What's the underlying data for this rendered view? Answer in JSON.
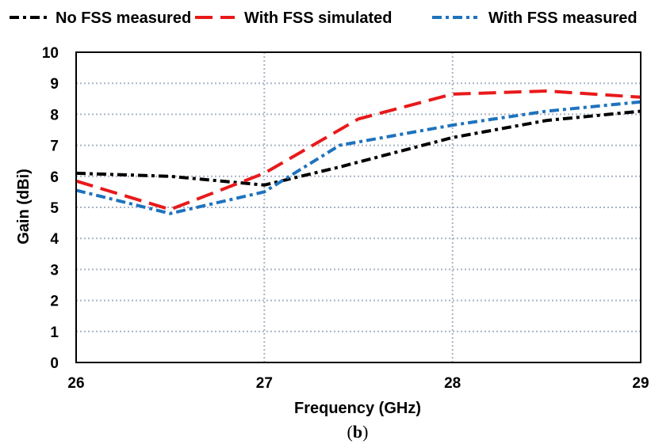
{
  "chart_data": {
    "type": "line",
    "xlabel": "Frequency (GHz)",
    "ylabel": "Gain (dBi)",
    "xlim": [
      26,
      29
    ],
    "ylim": [
      0,
      10
    ],
    "x_ticks": [
      "26",
      "27",
      "28",
      "29"
    ],
    "y_ticks": [
      "0",
      "1",
      "2",
      "3",
      "4",
      "5",
      "6",
      "7",
      "8",
      "9",
      "10"
    ],
    "grid": true,
    "legend_position": "top",
    "series": [
      {
        "name": "No FSS measured",
        "color": "#000000",
        "dash": "dash-dot",
        "points": [
          [
            26.0,
            6.1
          ],
          [
            26.5,
            6.0
          ],
          [
            27.0,
            5.72
          ],
          [
            27.4,
            6.3
          ],
          [
            28.0,
            7.25
          ],
          [
            28.5,
            7.8
          ],
          [
            29.0,
            8.1
          ]
        ]
      },
      {
        "name": "With FSS simulated",
        "color": "#e8191a",
        "dash": "long-dash",
        "points": [
          [
            26.0,
            5.85
          ],
          [
            26.5,
            4.93
          ],
          [
            27.0,
            6.1
          ],
          [
            27.5,
            7.85
          ],
          [
            28.0,
            8.65
          ],
          [
            28.5,
            8.75
          ],
          [
            29.0,
            8.55
          ]
        ]
      },
      {
        "name": "With FSS measured",
        "color": "#1e73be",
        "dash": "dash-dot",
        "points": [
          [
            26.0,
            5.55
          ],
          [
            26.5,
            4.8
          ],
          [
            27.0,
            5.5
          ],
          [
            27.4,
            7.0
          ],
          [
            28.0,
            7.65
          ],
          [
            28.5,
            8.1
          ],
          [
            29.0,
            8.4
          ]
        ]
      }
    ]
  },
  "caption": {
    "open": "(",
    "letter": "b",
    "close": ")"
  }
}
